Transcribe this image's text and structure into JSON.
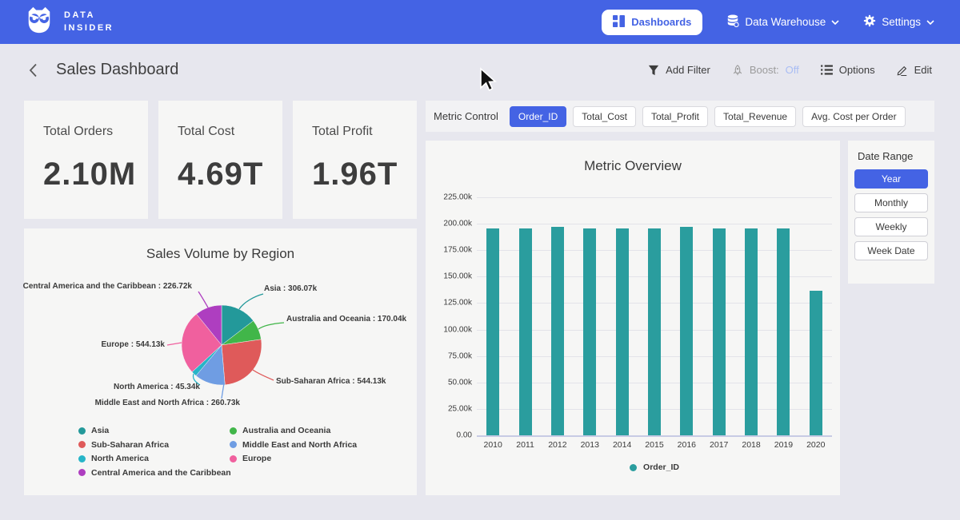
{
  "navbar": {
    "brand_line1": "DATA",
    "brand_line2": "INSIDER",
    "dashboards_label": "Dashboards",
    "data_warehouse_label": "Data Warehouse",
    "settings_label": "Settings"
  },
  "header": {
    "title": "Sales Dashboard",
    "add_filter_label": "Add Filter",
    "boost_label": "Boost:",
    "boost_value": "Off",
    "options_label": "Options",
    "edit_label": "Edit"
  },
  "kpis": [
    {
      "label": "Total Orders",
      "value": "2.10M"
    },
    {
      "label": "Total Cost",
      "value": "4.69T"
    },
    {
      "label": "Total Profit",
      "value": "1.96T"
    }
  ],
  "metric_control": {
    "label": "Metric Control",
    "buttons": [
      {
        "label": "Order_ID",
        "selected": true
      },
      {
        "label": "Total_Cost",
        "selected": false
      },
      {
        "label": "Total_Profit",
        "selected": false
      },
      {
        "label": "Total_Revenue",
        "selected": false
      },
      {
        "label": "Avg. Cost per Order",
        "selected": false
      }
    ]
  },
  "date_range": {
    "label": "Date Range",
    "buttons": [
      {
        "label": "Year",
        "selected": true
      },
      {
        "label": "Monthly",
        "selected": false
      },
      {
        "label": "Weekly",
        "selected": false
      },
      {
        "label": "Week Date",
        "selected": false
      }
    ]
  },
  "colors": {
    "navbar_blue": "#4463E4",
    "accent_blue": "#4463E4",
    "bar_teal": "#2A9D9E",
    "boost_off_blue": "#A9BDF4",
    "card_bg": "#F6F6F5",
    "page_bg": "#E7E7EE"
  },
  "chart_data": [
    {
      "type": "bar",
      "title": "Metric Overview",
      "categories": [
        "2010",
        "2011",
        "2012",
        "2013",
        "2014",
        "2015",
        "2016",
        "2017",
        "2018",
        "2019",
        "2020"
      ],
      "series": [
        {
          "name": "Order_ID",
          "color": "#2A9D9E",
          "values": [
            195500,
            195400,
            197300,
            195600,
            195300,
            195500,
            197300,
            195900,
            195400,
            195600,
            136600
          ]
        }
      ],
      "ylim": [
        0,
        225000
      ],
      "ytick_labels": [
        "225.00k",
        "200.00k",
        "175.00k",
        "150.00k",
        "125.00k",
        "100.00k",
        "75.00k",
        "50.00k",
        "25.00k",
        "0.00"
      ],
      "xlabel": "",
      "ylabel": "",
      "grid": true,
      "legend_position": "bottom"
    },
    {
      "type": "pie",
      "title": "Sales Volume by Region",
      "slices": [
        {
          "label": "Asia",
          "value": 306070,
          "display": "Asia : 306.07k",
          "color": "#23999A"
        },
        {
          "label": "Australia and Oceania",
          "value": 170040,
          "display": "Australia and Oceania : 170.04k",
          "color": "#41B649"
        },
        {
          "label": "Sub-Saharan Africa",
          "value": 544130,
          "display": "Sub-Saharan Africa : 544.13k",
          "color": "#DF5A5A"
        },
        {
          "label": "Middle East and North Africa",
          "value": 260730,
          "display": "Middle East and North Africa : 260.73k",
          "color": "#6F9DE3"
        },
        {
          "label": "North America",
          "value": 45340,
          "display": "North America : 45.34k",
          "color": "#27B5C8"
        },
        {
          "label": "Europe",
          "value": 544130,
          "display": "Europe : 544.13k",
          "color": "#F0609E"
        },
        {
          "label": "Central America and the Caribbean",
          "value": 226720,
          "display": "Central America and the Caribbean : 226.72k",
          "color": "#AE3EC0"
        }
      ],
      "legend_order_col1": [
        0,
        2,
        4,
        6
      ],
      "legend_order_col2": [
        1,
        3,
        5
      ]
    }
  ]
}
